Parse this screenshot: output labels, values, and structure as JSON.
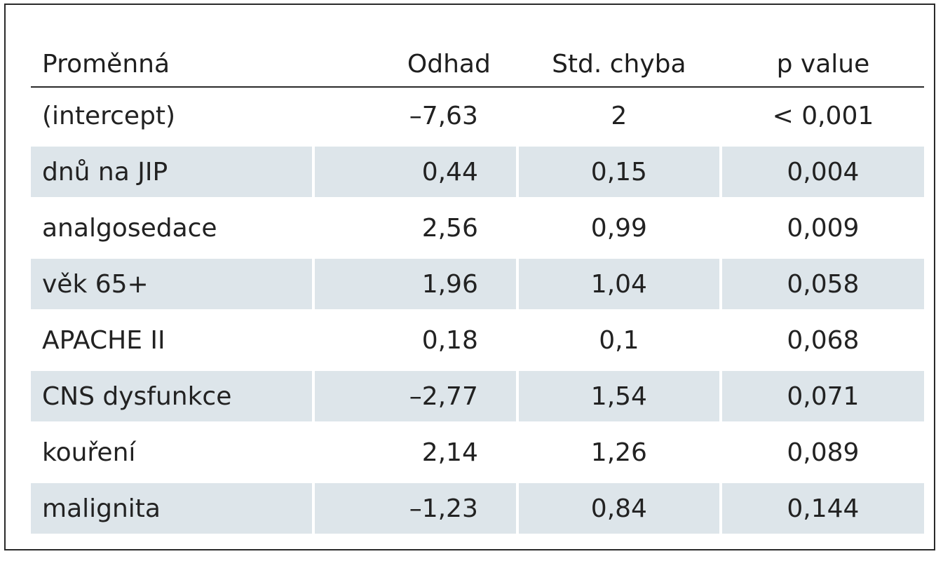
{
  "table": {
    "headers": [
      "Proměnná",
      "Odhad",
      "Std. chyba",
      "p value"
    ],
    "rows": [
      [
        "(intercept)",
        "–7,63",
        "2",
        "< 0,001"
      ],
      [
        "dnů na JIP",
        "0,44",
        "0,15",
        "0,004"
      ],
      [
        "analgosedace",
        "2,56",
        "0,99",
        "0,009"
      ],
      [
        "věk 65+",
        "1,96",
        "1,04",
        "0,058"
      ],
      [
        "APACHE II",
        "0,18",
        "0,1",
        "0,068"
      ],
      [
        "CNS dysfunkce",
        "–2,77",
        "1,54",
        "0,071"
      ],
      [
        "kouření",
        "2,14",
        "1,26",
        "0,089"
      ],
      [
        "malignita",
        "–1,23",
        "0,84",
        "0,144"
      ]
    ],
    "shade_color": "#dde5ea"
  }
}
